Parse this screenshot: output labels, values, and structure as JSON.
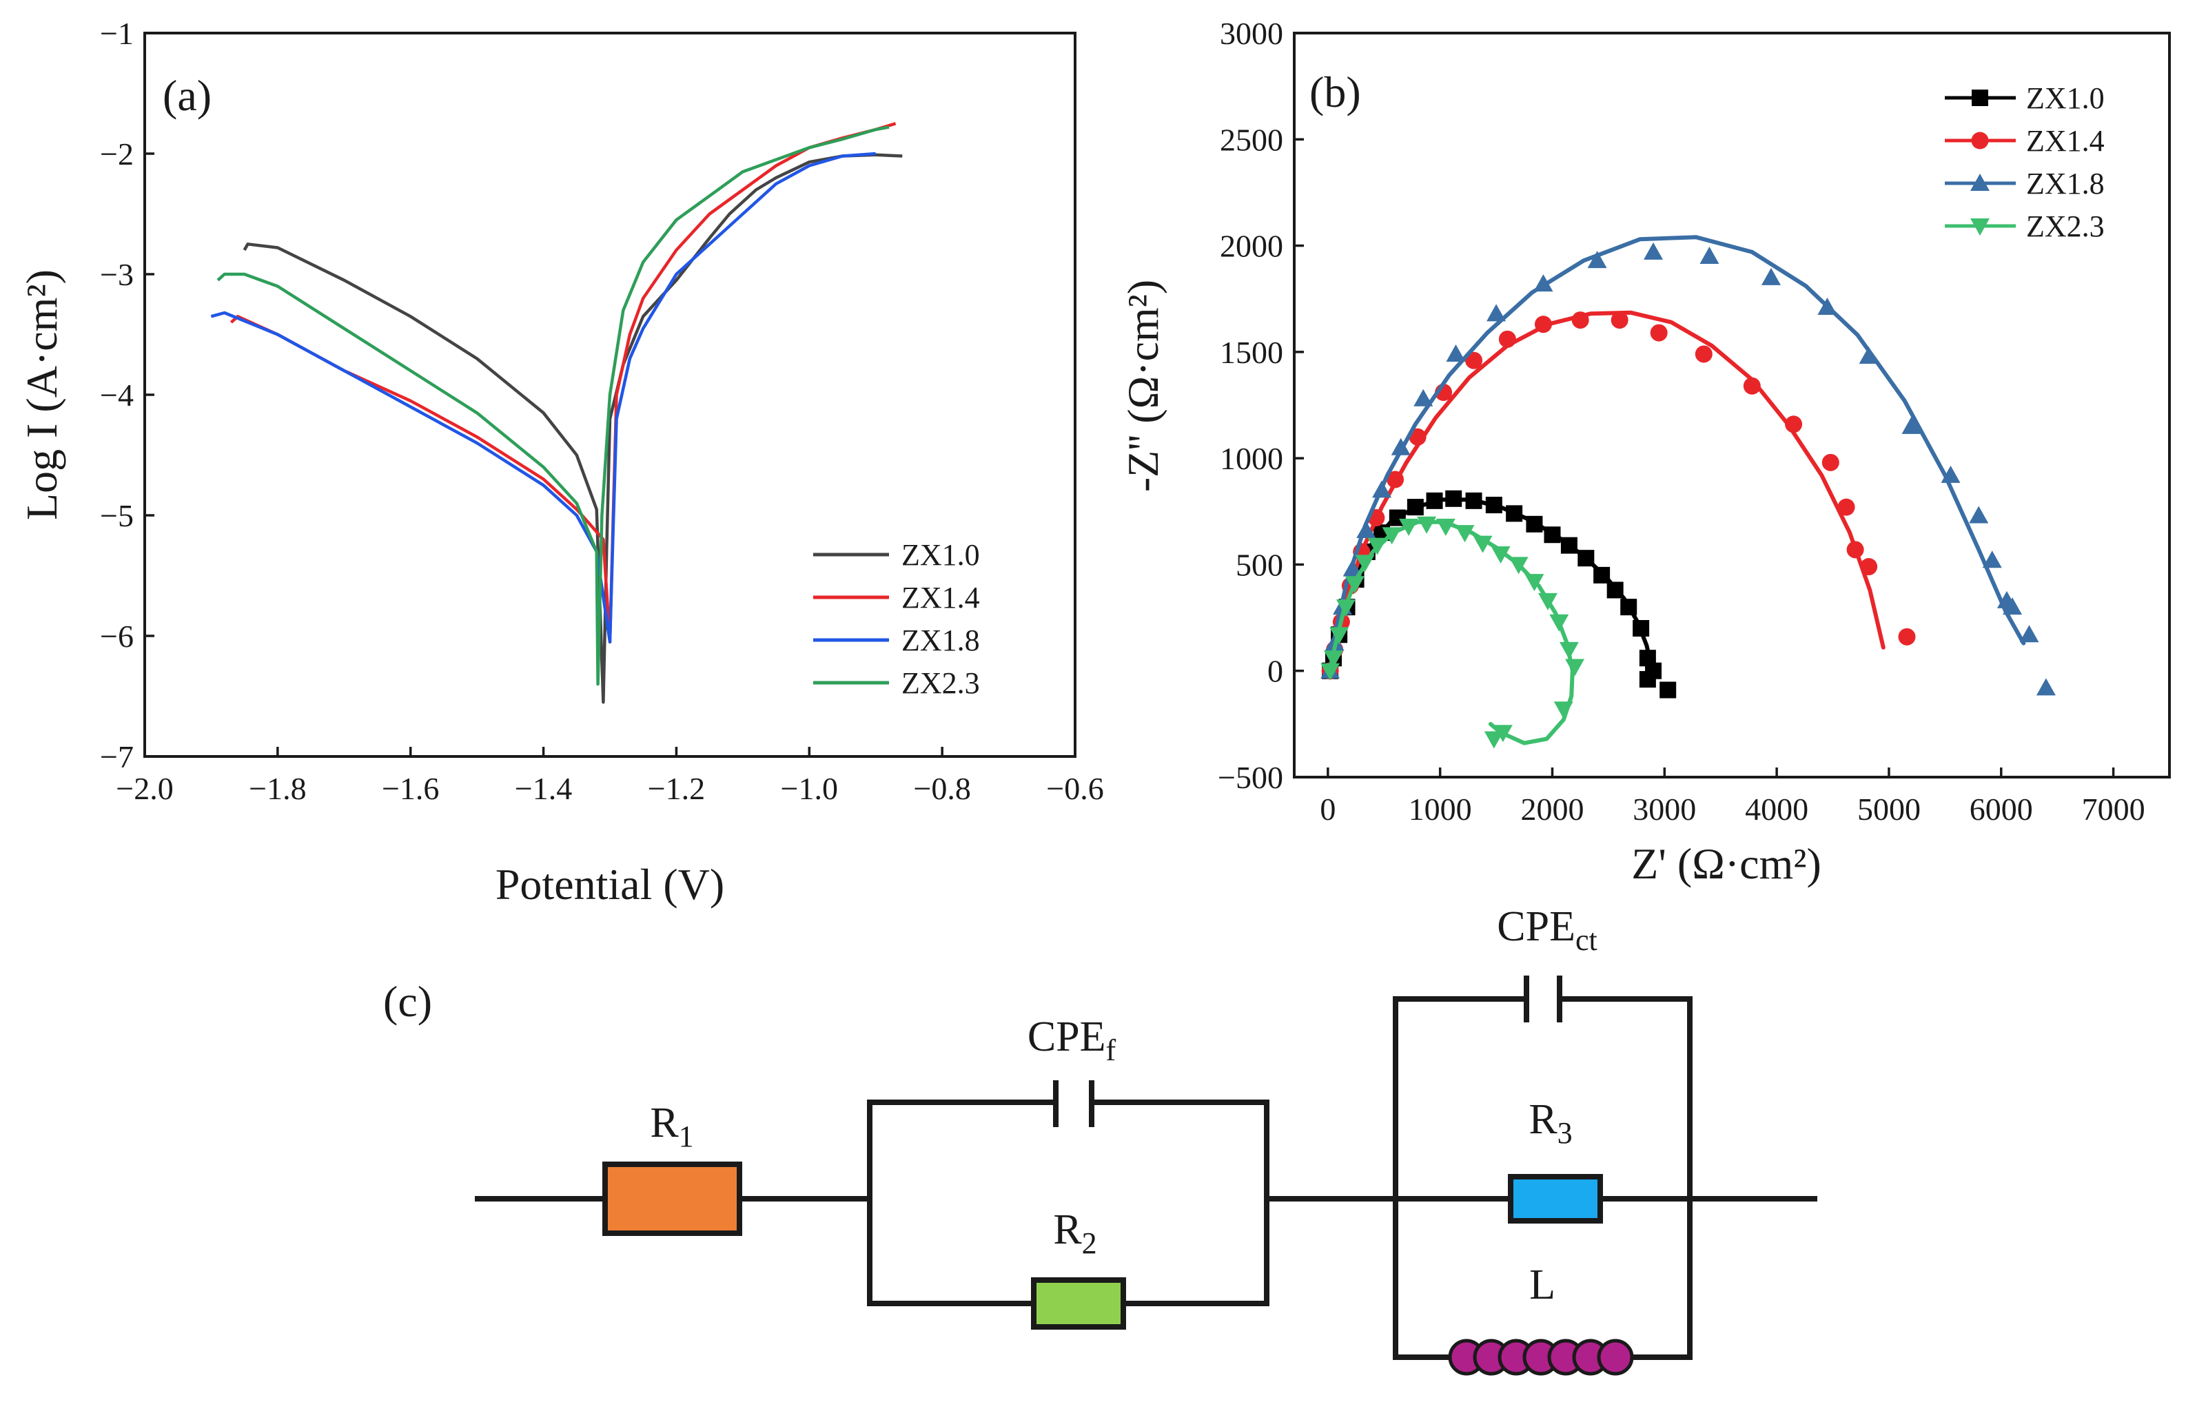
{
  "colors": {
    "ZX1.0": "#444444",
    "ZX1.4": "#e8262a",
    "ZX1.8": "#2156e6",
    "ZX2.3": "#2e9e59",
    "b_ZX1.0": "#000000",
    "b_ZX1.4": "#e8262a",
    "b_ZX1.8": "#3a6ea5",
    "b_ZX2.3": "#3dbf6e",
    "R1": "#f07f36",
    "R2": "#8fd14f",
    "R3": "#1aaaf0",
    "L": "#b0208a"
  },
  "chart_data": [
    {
      "panel": "(a)",
      "type": "line",
      "xlabel": "Potential (V)",
      "ylabel": "Log I (A·cm²)",
      "xlim": [
        -2.0,
        -0.6
      ],
      "ylim": [
        -7,
        -1
      ],
      "xticks": [
        "−2.0",
        "−1.8",
        "−1.6",
        "−1.4",
        "−1.2",
        "−1.0",
        "−0.8",
        "−0.6"
      ],
      "yticks": [
        "−7",
        "−6",
        "−5",
        "−4",
        "−3",
        "−2",
        "−1"
      ],
      "grid": false,
      "legend": "bottom-right",
      "series": [
        {
          "name": "ZX1.0",
          "x": [
            -1.85,
            -1.845,
            -1.8,
            -1.7,
            -1.6,
            -1.5,
            -1.4,
            -1.35,
            -1.32,
            -1.31,
            -1.305,
            -1.3,
            -1.28,
            -1.25,
            -1.2,
            -1.15,
            -1.12,
            -1.08,
            -1.05,
            -1.0,
            -0.95,
            -0.9,
            -0.86
          ],
          "y": [
            -2.8,
            -2.75,
            -2.78,
            -3.05,
            -3.35,
            -3.7,
            -4.15,
            -4.5,
            -4.95,
            -6.55,
            -5.3,
            -4.2,
            -3.75,
            -3.35,
            -3.05,
            -2.7,
            -2.5,
            -2.3,
            -2.2,
            -2.07,
            -2.02,
            -2.01,
            -2.02
          ]
        },
        {
          "name": "ZX1.4",
          "x": [
            -1.87,
            -1.86,
            -1.8,
            -1.7,
            -1.6,
            -1.5,
            -1.4,
            -1.35,
            -1.31,
            -1.3,
            -1.295,
            -1.29,
            -1.27,
            -1.25,
            -1.2,
            -1.15,
            -1.1,
            -1.05,
            -1.0,
            -0.95,
            -0.9,
            -0.87
          ],
          "y": [
            -3.4,
            -3.35,
            -3.5,
            -3.8,
            -4.05,
            -4.35,
            -4.7,
            -4.95,
            -5.2,
            -6.05,
            -5.0,
            -4.0,
            -3.5,
            -3.2,
            -2.8,
            -2.5,
            -2.3,
            -2.1,
            -1.95,
            -1.87,
            -1.8,
            -1.75
          ]
        },
        {
          "name": "ZX1.8",
          "x": [
            -1.9,
            -1.88,
            -1.8,
            -1.7,
            -1.6,
            -1.5,
            -1.4,
            -1.35,
            -1.32,
            -1.3,
            -1.295,
            -1.29,
            -1.27,
            -1.25,
            -1.2,
            -1.15,
            -1.1,
            -1.05,
            -1.0,
            -0.95,
            -0.9
          ],
          "y": [
            -3.35,
            -3.32,
            -3.5,
            -3.8,
            -4.1,
            -4.4,
            -4.75,
            -5.0,
            -5.3,
            -6.05,
            -5.1,
            -4.2,
            -3.7,
            -3.45,
            -3.0,
            -2.75,
            -2.5,
            -2.25,
            -2.1,
            -2.02,
            -2.0
          ]
        },
        {
          "name": "ZX2.3",
          "x": [
            -1.89,
            -1.88,
            -1.85,
            -1.8,
            -1.7,
            -1.6,
            -1.5,
            -1.4,
            -1.35,
            -1.32,
            -1.318,
            -1.312,
            -1.3,
            -1.28,
            -1.25,
            -1.2,
            -1.15,
            -1.1,
            -1.05,
            -1.0,
            -0.95,
            -0.9,
            -0.88
          ],
          "y": [
            -3.05,
            -3.0,
            -3.0,
            -3.1,
            -3.45,
            -3.8,
            -4.15,
            -4.6,
            -4.9,
            -5.3,
            -6.4,
            -5.0,
            -4.0,
            -3.3,
            -2.9,
            -2.55,
            -2.35,
            -2.15,
            -2.05,
            -1.95,
            -1.88,
            -1.8,
            -1.78
          ]
        }
      ]
    },
    {
      "panel": "(b)",
      "type": "scatter",
      "xlabel": "Z' (Ω·cm²)",
      "ylabel": "-Z'' (Ω·cm²)",
      "xlim": [
        -300,
        7500
      ],
      "ylim": [
        -500,
        3000
      ],
      "xticks": [
        "0",
        "1000",
        "2000",
        "3000",
        "4000",
        "5000",
        "6000",
        "7000"
      ],
      "yticks": [
        "−500",
        "0",
        "500",
        "1000",
        "1500",
        "2000",
        "2500",
        "3000"
      ],
      "grid": false,
      "legend": "top-right",
      "series": [
        {
          "name": "ZX1.0",
          "marker": "square",
          "points": [
            [
              20,
              0
            ],
            [
              50,
              60
            ],
            [
              100,
              170
            ],
            [
              170,
              300
            ],
            [
              250,
              430
            ],
            [
              350,
              560
            ],
            [
              480,
              650
            ],
            [
              620,
              720
            ],
            [
              780,
              770
            ],
            [
              950,
              800
            ],
            [
              1120,
              810
            ],
            [
              1300,
              800
            ],
            [
              1480,
              780
            ],
            [
              1660,
              740
            ],
            [
              1840,
              690
            ],
            [
              2000,
              640
            ],
            [
              2150,
              590
            ],
            [
              2300,
              530
            ],
            [
              2440,
              450
            ],
            [
              2560,
              380
            ],
            [
              2680,
              300
            ],
            [
              2790,
              200
            ],
            [
              2850,
              60
            ],
            [
              2900,
              0
            ],
            [
              2850,
              -40
            ],
            [
              3030,
              -90
            ]
          ],
          "fit": [
            [
              20,
              0
            ],
            [
              60,
              90
            ],
            [
              130,
              250
            ],
            [
              230,
              420
            ],
            [
              380,
              590
            ],
            [
              560,
              700
            ],
            [
              780,
              770
            ],
            [
              1020,
              805
            ],
            [
              1280,
              805
            ],
            [
              1540,
              770
            ],
            [
              1800,
              710
            ],
            [
              2050,
              630
            ],
            [
              2280,
              540
            ],
            [
              2480,
              440
            ],
            [
              2640,
              340
            ],
            [
              2760,
              230
            ],
            [
              2840,
              120
            ],
            [
              2880,
              30
            ]
          ]
        },
        {
          "name": "ZX1.4",
          "marker": "circle",
          "points": [
            [
              20,
              0
            ],
            [
              60,
              100
            ],
            [
              120,
              230
            ],
            [
              200,
              400
            ],
            [
              300,
              560
            ],
            [
              430,
              720
            ],
            [
              600,
              900
            ],
            [
              800,
              1100
            ],
            [
              1030,
              1310
            ],
            [
              1300,
              1460
            ],
            [
              1600,
              1560
            ],
            [
              1920,
              1630
            ],
            [
              2250,
              1650
            ],
            [
              2600,
              1650
            ],
            [
              2950,
              1590
            ],
            [
              3350,
              1490
            ],
            [
              3780,
              1340
            ],
            [
              4150,
              1160
            ],
            [
              4480,
              980
            ],
            [
              4620,
              770
            ],
            [
              4700,
              570
            ],
            [
              4820,
              490
            ],
            [
              5160,
              160
            ]
          ],
          "fit": [
            [
              20,
              0
            ],
            [
              70,
              150
            ],
            [
              160,
              340
            ],
            [
              300,
              560
            ],
            [
              480,
              770
            ],
            [
              700,
              980
            ],
            [
              960,
              1190
            ],
            [
              1260,
              1380
            ],
            [
              1600,
              1530
            ],
            [
              1960,
              1630
            ],
            [
              2340,
              1680
            ],
            [
              2700,
              1685
            ],
            [
              3060,
              1640
            ],
            [
              3420,
              1530
            ],
            [
              3780,
              1370
            ],
            [
              4100,
              1160
            ],
            [
              4400,
              920
            ],
            [
              4650,
              650
            ],
            [
              4830,
              380
            ],
            [
              4950,
              110
            ]
          ]
        },
        {
          "name": "ZX1.8",
          "marker": "triangle-up",
          "points": [
            [
              20,
              0
            ],
            [
              60,
              130
            ],
            [
              130,
              300
            ],
            [
              220,
              480
            ],
            [
              340,
              660
            ],
            [
              480,
              850
            ],
            [
              650,
              1050
            ],
            [
              850,
              1280
            ],
            [
              1140,
              1490
            ],
            [
              1500,
              1680
            ],
            [
              1920,
              1820
            ],
            [
              2400,
              1930
            ],
            [
              2900,
              1970
            ],
            [
              3400,
              1950
            ],
            [
              3950,
              1850
            ],
            [
              4450,
              1710
            ],
            [
              4820,
              1480
            ],
            [
              5200,
              1150
            ],
            [
              5550,
              920
            ],
            [
              5800,
              730
            ],
            [
              5920,
              520
            ],
            [
              6050,
              330
            ],
            [
              6100,
              300
            ],
            [
              6250,
              170
            ],
            [
              6400,
              -80
            ]
          ],
          "fit": [
            [
              20,
              0
            ],
            [
              70,
              190
            ],
            [
              170,
              420
            ],
            [
              330,
              680
            ],
            [
              530,
              920
            ],
            [
              780,
              1160
            ],
            [
              1080,
              1390
            ],
            [
              1420,
              1590
            ],
            [
              1820,
              1780
            ],
            [
              2280,
              1930
            ],
            [
              2780,
              2030
            ],
            [
              3280,
              2040
            ],
            [
              3780,
              1970
            ],
            [
              4260,
              1810
            ],
            [
              4720,
              1580
            ],
            [
              5140,
              1270
            ],
            [
              5500,
              920
            ],
            [
              5800,
              570
            ],
            [
              6040,
              280
            ],
            [
              6200,
              130
            ]
          ]
        },
        {
          "name": "ZX2.3",
          "marker": "triangle-down",
          "points": [
            [
              20,
              0
            ],
            [
              50,
              60
            ],
            [
              100,
              170
            ],
            [
              160,
              300
            ],
            [
              240,
              410
            ],
            [
              330,
              510
            ],
            [
              440,
              590
            ],
            [
              570,
              640
            ],
            [
              720,
              680
            ],
            [
              880,
              690
            ],
            [
              1050,
              680
            ],
            [
              1220,
              650
            ],
            [
              1380,
              600
            ],
            [
              1540,
              550
            ],
            [
              1700,
              500
            ],
            [
              1840,
              420
            ],
            [
              1960,
              330
            ],
            [
              2060,
              230
            ],
            [
              2150,
              100
            ],
            [
              2200,
              20
            ],
            [
              2100,
              -180
            ],
            [
              1560,
              -290
            ],
            [
              1480,
              -320
            ]
          ],
          "fit": [
            [
              20,
              0
            ],
            [
              60,
              110
            ],
            [
              140,
              280
            ],
            [
              250,
              430
            ],
            [
              400,
              560
            ],
            [
              580,
              650
            ],
            [
              800,
              700
            ],
            [
              1040,
              700
            ],
            [
              1280,
              650
            ],
            [
              1500,
              580
            ],
            [
              1700,
              500
            ],
            [
              1880,
              400
            ],
            [
              2030,
              270
            ],
            [
              2130,
              130
            ],
            [
              2180,
              0
            ],
            [
              2170,
              -120
            ],
            [
              2100,
              -230
            ],
            [
              1950,
              -320
            ],
            [
              1750,
              -340
            ],
            [
              1540,
              -290
            ],
            [
              1450,
              -250
            ]
          ]
        }
      ]
    }
  ],
  "circuit": {
    "panel": "(c)",
    "R1": "R",
    "R1_sub": "1",
    "CPEf": "CPE",
    "CPEf_sub": "f",
    "R2": "R",
    "R2_sub": "2",
    "CPEct": "CPE",
    "CPEct_sub": "ct",
    "R3": "R",
    "R3_sub": "3",
    "L": "L"
  }
}
